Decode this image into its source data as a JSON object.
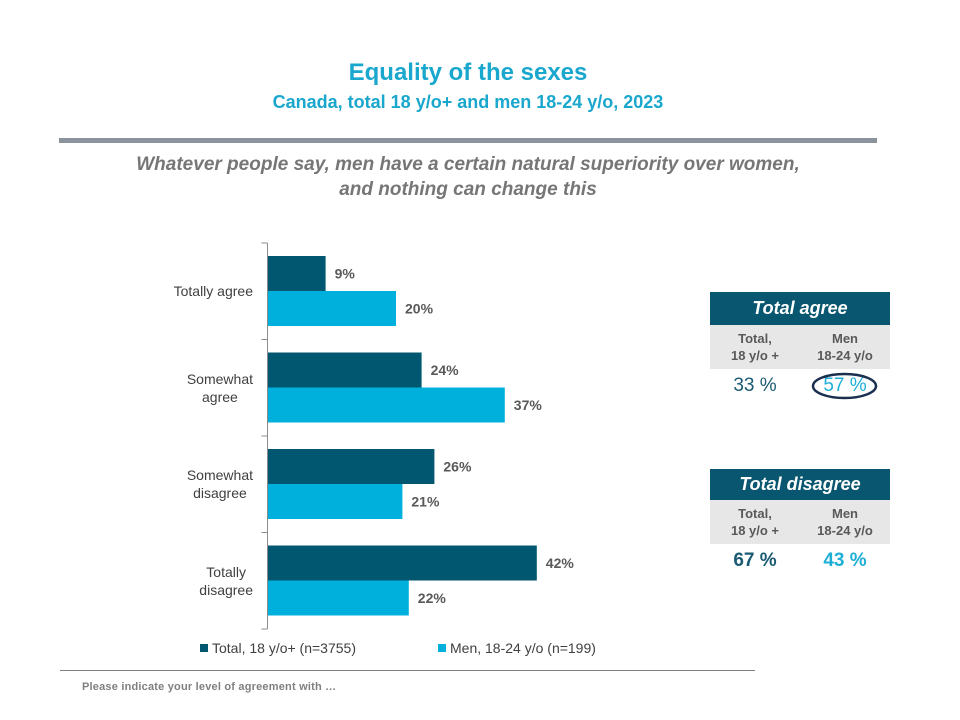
{
  "header": {
    "title": "Equality of the sexes",
    "subtitle": "Canada, total 18 y/o+ and men 18-24 y/o, 2023"
  },
  "question_lines": [
    "Whatever people say, men have a certain natural superiority over women,",
    "and nothing can change this"
  ],
  "colors": {
    "title": "#1aa7cd",
    "total_series": "#00576f",
    "men_series": "#00b0dc",
    "highlight_ellipse": "#1b3050"
  },
  "chart_data": {
    "type": "bar",
    "orientation": "horizontal",
    "title": "Whatever people say, men have a certain natural superiority over women, and nothing can change this",
    "xlabel": "",
    "ylabel": "",
    "xlim": [
      0,
      45
    ],
    "grid": false,
    "categories": [
      "Totally agree",
      "Somewhat agree",
      "Somewhat disagree",
      "Totally disagree"
    ],
    "category_lines": [
      [
        "Totally agree"
      ],
      [
        "Somewhat",
        "agree"
      ],
      [
        "Somewhat",
        "disagree"
      ],
      [
        "Totally",
        "disagree"
      ]
    ],
    "series": [
      {
        "name": "Total, 18 y/o+ (n=3755)",
        "color": "#00576f",
        "values": [
          9,
          24,
          26,
          42
        ],
        "data_labels": [
          "9%",
          "24%",
          "26%",
          "42%"
        ]
      },
      {
        "name": "Men, 18-24 y/o (n=199)",
        "color": "#00b0dc",
        "values": [
          20,
          37,
          21,
          22
        ],
        "data_labels": [
          "20%",
          "37%",
          "21%",
          "22%"
        ]
      }
    ],
    "legend_position": "bottom"
  },
  "summary": {
    "agree": {
      "title": "Total agree",
      "col1_lines": [
        "Total,",
        "18 y/o +"
      ],
      "col2_lines": [
        "Men",
        "18-24 y/o"
      ],
      "total_value": "33 %",
      "men_value": "57 %",
      "men_value_highlighted": true
    },
    "disagree": {
      "title": "Total disagree",
      "col1_lines": [
        "Total,",
        "18 y/o +"
      ],
      "col2_lines": [
        "Men",
        "18-24 y/o"
      ],
      "total_value": "67 %",
      "men_value": "43 %"
    }
  },
  "footer": {
    "note": "Please indicate your level of agreement with …"
  }
}
